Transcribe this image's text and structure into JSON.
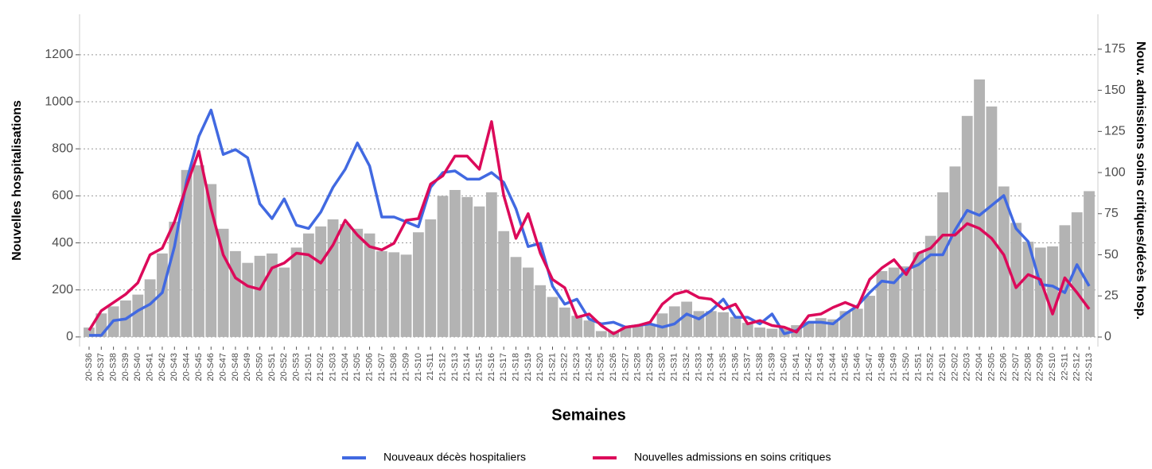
{
  "chart_data": {
    "type": "bar-line",
    "xlabel": "Semaines",
    "ylabel": "Nouvelles hospitalisations",
    "y2label": "Nouv. admissions soins critiques/décès hosp.",
    "categories": [
      "20-S36",
      "20-S37",
      "20-S38",
      "20-S39",
      "20-S40",
      "20-S41",
      "20-S42",
      "20-S43",
      "20-S44",
      "20-S45",
      "20-S46",
      "20-S47",
      "20-S48",
      "20-S49",
      "20-S50",
      "20-S51",
      "20-S52",
      "20-S53",
      "21-S01",
      "21-S02",
      "21-S03",
      "21-S04",
      "21-S05",
      "21-S06",
      "21-S07",
      "21-S08",
      "21-S09",
      "21-S10",
      "21-S11",
      "21-S12",
      "21-S13",
      "21-S14",
      "21-S15",
      "21-S16",
      "21-S17",
      "21-S18",
      "21-S19",
      "21-S20",
      "21-S21",
      "21-S22",
      "21-S23",
      "21-S24",
      "21-S25",
      "21-S26",
      "21-S27",
      "21-S28",
      "21-S29",
      "21-S30",
      "21-S31",
      "21-S32",
      "21-S33",
      "21-S34",
      "21-S35",
      "21-S36",
      "21-S37",
      "21-S38",
      "21-S39",
      "21-S40",
      "21-S41",
      "21-S42",
      "21-S43",
      "21-S44",
      "21-S45",
      "21-S46",
      "21-S47",
      "21-S48",
      "21-S49",
      "21-S50",
      "21-S51",
      "21-S52",
      "22-S01",
      "22-S02",
      "22-S03",
      "22-S04",
      "22-S05",
      "22-S06",
      "22-S07",
      "22-S08",
      "22-S09",
      "22-S10",
      "22-S11",
      "22-S12",
      "22-S13"
    ],
    "values": [
      40,
      100,
      130,
      155,
      180,
      245,
      355,
      490,
      710,
      730,
      650,
      460,
      365,
      315,
      345,
      355,
      295,
      380,
      440,
      470,
      500,
      480,
      460,
      440,
      365,
      360,
      350,
      445,
      500,
      600,
      625,
      595,
      555,
      615,
      450,
      340,
      295,
      220,
      170,
      125,
      90,
      70,
      25,
      25,
      40,
      50,
      55,
      100,
      130,
      150,
      110,
      110,
      105,
      85,
      60,
      40,
      35,
      40,
      50,
      65,
      80,
      75,
      110,
      120,
      175,
      280,
      295,
      300,
      360,
      430,
      615,
      725,
      940,
      1095,
      980,
      640,
      485,
      405,
      380,
      385,
      475,
      530,
      620
    ],
    "color": "#b3b3b3",
    "series": [
      {
        "name": "Nouveaux décès hospitaliers",
        "color": "#4169e1",
        "axis": "y2",
        "values": [
          1,
          1,
          10,
          11,
          16,
          20,
          27,
          55,
          95,
          122,
          138,
          111,
          114,
          109,
          81,
          72,
          84,
          68,
          66,
          76,
          91,
          102,
          118,
          104,
          73,
          73,
          70,
          67,
          91,
          100,
          101,
          96,
          96,
          100,
          94,
          78,
          55,
          57,
          31,
          20,
          23,
          11,
          8,
          9,
          6,
          7,
          8,
          6,
          8,
          14,
          11,
          16,
          23,
          12,
          12,
          8,
          14,
          2,
          4,
          9,
          9,
          8,
          14,
          19,
          27,
          34,
          33,
          41,
          44,
          50,
          50,
          65,
          77,
          74,
          80,
          86,
          66,
          58,
          32,
          31,
          27,
          44,
          31
        ]
      },
      {
        "name": "Nouvelles admissions en soins critiques",
        "color": "#dc0a5a",
        "axis": "y2",
        "values": [
          4,
          16,
          21,
          26,
          33,
          50,
          54,
          70,
          92,
          113,
          78,
          50,
          36,
          31,
          29,
          42,
          45,
          51,
          50,
          45,
          56,
          71,
          62,
          55,
          53,
          57,
          71,
          72,
          93,
          98,
          110,
          110,
          102,
          131,
          86,
          60,
          75,
          51,
          35,
          30,
          12,
          14,
          7,
          2,
          6,
          7,
          9,
          20,
          26,
          28,
          24,
          23,
          17,
          20,
          8,
          10,
          7,
          6,
          3,
          13,
          14,
          18,
          21,
          18,
          35,
          42,
          47,
          38,
          51,
          54,
          62,
          62,
          69,
          66,
          60,
          50,
          30,
          38,
          35,
          14,
          36,
          27,
          17
        ]
      }
    ],
    "ylim": [
      -41,
      1372
    ],
    "yticks": [
      0,
      200,
      400,
      600,
      800,
      1000,
      1200
    ],
    "y2lim": [
      -5.8,
      196.2
    ],
    "y2ticks": [
      0,
      25,
      50,
      75,
      100,
      125,
      150,
      175
    ],
    "grid": true,
    "legend": "bottom"
  }
}
